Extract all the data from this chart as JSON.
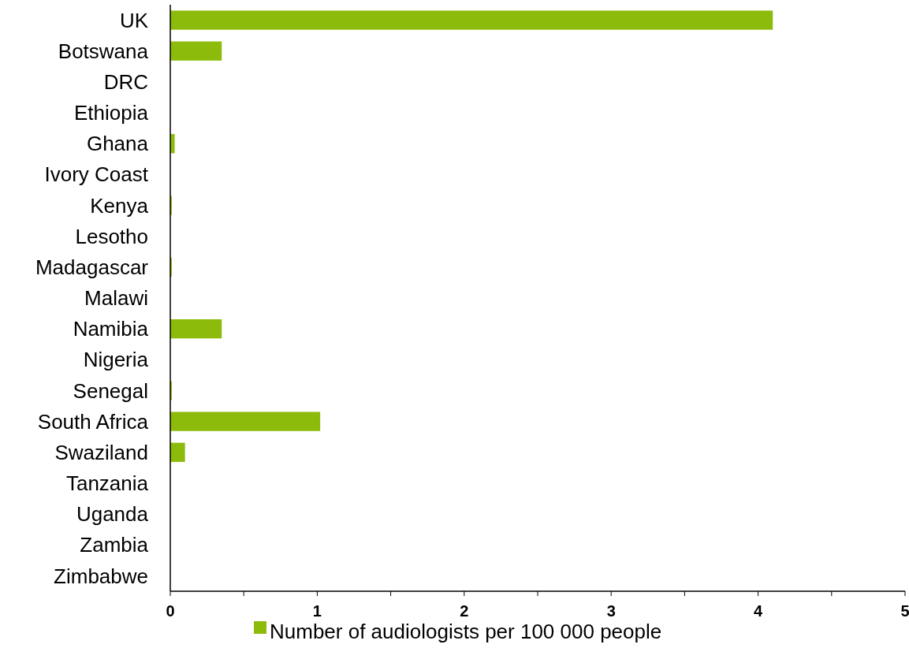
{
  "chart_data": {
    "type": "bar",
    "orientation": "horizontal",
    "categories": [
      "UK",
      "Botswana",
      "DRC",
      "Ethiopia",
      "Ghana",
      "Ivory Coast",
      "Kenya",
      "Lesotho",
      "Madagascar",
      "Malawi",
      "Namibia",
      "Nigeria",
      "Senegal",
      "South Africa",
      "Swaziland",
      "Tanzania",
      "Uganda",
      "Zambia",
      "Zimbabwe"
    ],
    "series": [
      {
        "name": "Number of audiologists per 100 000 people",
        "color": "#8cbb0c",
        "values": [
          4.1,
          0.35,
          0,
          0,
          0.03,
          null,
          0.01,
          0,
          0.01,
          0,
          0.35,
          null,
          0.01,
          1.02,
          0.1,
          0,
          null,
          null,
          0
        ]
      }
    ],
    "xlim": [
      0,
      5
    ],
    "xticks": [
      0,
      {
        "value": 0.5,
        "label": null
      },
      1,
      {
        "value": 1.5,
        "label": null
      },
      2,
      {
        "value": 2.5,
        "label": null
      },
      3,
      {
        "value": 3.5,
        "label": null
      },
      4,
      {
        "value": 4.5,
        "label": null
      },
      5
    ],
    "grid": false,
    "legend": "bottom"
  }
}
